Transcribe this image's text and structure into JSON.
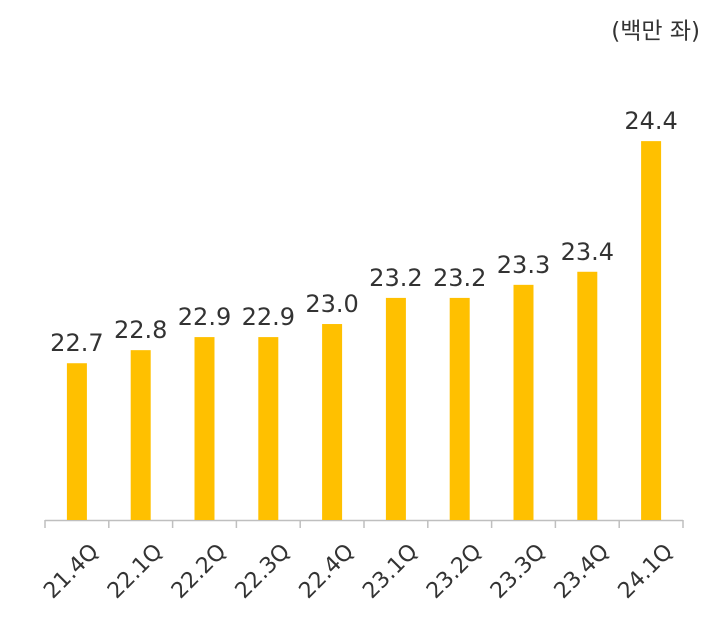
{
  "chart_data": {
    "type": "bar",
    "unit_label": "(백만 좌)",
    "categories": [
      "21.4Q",
      "22.1Q",
      "22.2Q",
      "22.3Q",
      "22.4Q",
      "23.1Q",
      "23.2Q",
      "23.3Q",
      "23.4Q",
      "24.1Q"
    ],
    "values": [
      22.7,
      22.8,
      22.9,
      22.9,
      23.0,
      23.2,
      23.2,
      23.3,
      23.4,
      24.4
    ],
    "value_labels": [
      "22.7",
      "22.8",
      "22.9",
      "22.9",
      "23.0",
      "23.2",
      "23.2",
      "23.3",
      "23.4",
      "24.4"
    ],
    "color": "#FFC000",
    "ylim": [
      21.5,
      24.6
    ]
  }
}
